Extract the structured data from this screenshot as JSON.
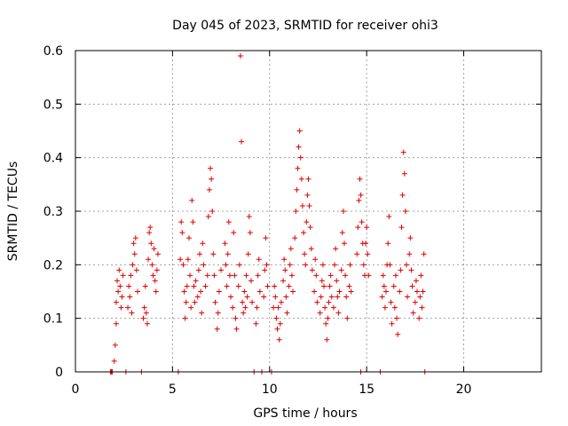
{
  "chart_data": {
    "type": "scatter",
    "title": "Day 045 of 2023, SRMTID for receiver ohi3",
    "xlabel": "GPS time / hours",
    "ylabel": "SRMTID / TECUs",
    "xlim": [
      0,
      24
    ],
    "ylim": [
      0,
      0.6
    ],
    "xticks": [
      0,
      5,
      10,
      15,
      20
    ],
    "yticks": [
      0,
      0.1,
      0.2,
      0.3,
      0.4,
      0.5,
      0.6
    ],
    "grid": true,
    "marker": "+",
    "series": [
      {
        "name": "SRMTID",
        "color": "#e00000",
        "points": [
          [
            1.8,
            0.0
          ],
          [
            1.85,
            0.0
          ],
          [
            1.9,
            0.0
          ],
          [
            2.0,
            0.02
          ],
          [
            2.05,
            0.05
          ],
          [
            2.1,
            0.09
          ],
          [
            2.1,
            0.13
          ],
          [
            2.15,
            0.17
          ],
          [
            2.2,
            0.15
          ],
          [
            2.25,
            0.19
          ],
          [
            2.3,
            0.16
          ],
          [
            2.35,
            0.12
          ],
          [
            2.4,
            0.14
          ],
          [
            2.45,
            0.18
          ],
          [
            2.6,
            0.0
          ],
          [
            2.7,
            0.12
          ],
          [
            2.75,
            0.16
          ],
          [
            2.8,
            0.14
          ],
          [
            2.85,
            0.18
          ],
          [
            2.9,
            0.11
          ],
          [
            2.95,
            0.2
          ],
          [
            3.0,
            0.24
          ],
          [
            3.05,
            0.22
          ],
          [
            3.1,
            0.25
          ],
          [
            3.15,
            0.19
          ],
          [
            3.2,
            0.15
          ],
          [
            3.4,
            0.0
          ],
          [
            3.5,
            0.1
          ],
          [
            3.55,
            0.12
          ],
          [
            3.6,
            0.16
          ],
          [
            3.65,
            0.11
          ],
          [
            3.7,
            0.09
          ],
          [
            3.75,
            0.21
          ],
          [
            3.8,
            0.26
          ],
          [
            3.85,
            0.27
          ],
          [
            3.9,
            0.24
          ],
          [
            3.95,
            0.2
          ],
          [
            4.0,
            0.18
          ],
          [
            4.05,
            0.23
          ],
          [
            4.1,
            0.17
          ],
          [
            4.15,
            0.15
          ],
          [
            4.2,
            0.19
          ],
          [
            4.25,
            0.22
          ],
          [
            5.3,
            0.0
          ],
          [
            5.4,
            0.21
          ],
          [
            5.45,
            0.28
          ],
          [
            5.5,
            0.26
          ],
          [
            5.55,
            0.2
          ],
          [
            5.6,
            0.15
          ],
          [
            5.65,
            0.1
          ],
          [
            5.7,
            0.13
          ],
          [
            5.75,
            0.16
          ],
          [
            5.8,
            0.21
          ],
          [
            5.85,
            0.25
          ],
          [
            5.9,
            0.18
          ],
          [
            5.95,
            0.12
          ],
          [
            6.0,
            0.32
          ],
          [
            6.05,
            0.28
          ],
          [
            6.1,
            0.16
          ],
          [
            6.15,
            0.13
          ],
          [
            6.2,
            0.17
          ],
          [
            6.3,
            0.14
          ],
          [
            6.35,
            0.19
          ],
          [
            6.4,
            0.22
          ],
          [
            6.45,
            0.15
          ],
          [
            6.5,
            0.11
          ],
          [
            6.55,
            0.24
          ],
          [
            6.6,
            0.2
          ],
          [
            6.7,
            0.16
          ],
          [
            6.8,
            0.18
          ],
          [
            6.85,
            0.29
          ],
          [
            6.9,
            0.34
          ],
          [
            6.95,
            0.38
          ],
          [
            7.0,
            0.36
          ],
          [
            7.05,
            0.3
          ],
          [
            7.1,
            0.22
          ],
          [
            7.15,
            0.18
          ],
          [
            7.2,
            0.13
          ],
          [
            7.3,
            0.08
          ],
          [
            7.35,
            0.11
          ],
          [
            7.4,
            0.15
          ],
          [
            7.5,
            0.19
          ],
          [
            7.7,
            0.24
          ],
          [
            7.75,
            0.2
          ],
          [
            7.8,
            0.16
          ],
          [
            7.85,
            0.22
          ],
          [
            7.9,
            0.28
          ],
          [
            7.95,
            0.18
          ],
          [
            8.0,
            0.14
          ],
          [
            8.1,
            0.12
          ],
          [
            8.15,
            0.26
          ],
          [
            8.2,
            0.18
          ],
          [
            8.25,
            0.1
          ],
          [
            8.3,
            0.08
          ],
          [
            8.4,
            0.16
          ],
          [
            8.45,
            0.2
          ],
          [
            8.5,
            0.59
          ],
          [
            8.55,
            0.43
          ],
          [
            8.6,
            0.13
          ],
          [
            8.65,
            0.11
          ],
          [
            8.7,
            0.15
          ],
          [
            8.75,
            0.12
          ],
          [
            8.8,
            0.18
          ],
          [
            8.85,
            0.14
          ],
          [
            8.9,
            0.22
          ],
          [
            8.95,
            0.29
          ],
          [
            9.0,
            0.26
          ],
          [
            9.05,
            0.17
          ],
          [
            9.1,
            0.13
          ],
          [
            9.2,
            0.0
          ],
          [
            9.3,
            0.09
          ],
          [
            9.35,
            0.12
          ],
          [
            9.4,
            0.18
          ],
          [
            9.45,
            0.21
          ],
          [
            9.5,
            0.15
          ],
          [
            9.6,
            0.0
          ],
          [
            9.7,
            0.14
          ],
          [
            9.75,
            0.19
          ],
          [
            9.8,
            0.25
          ],
          [
            9.85,
            0.2
          ],
          [
            9.9,
            0.16
          ],
          [
            10.1,
            0.0
          ],
          [
            10.2,
            0.12
          ],
          [
            10.25,
            0.16
          ],
          [
            10.3,
            0.14
          ],
          [
            10.35,
            0.1
          ],
          [
            10.4,
            0.08
          ],
          [
            10.45,
            0.12
          ],
          [
            10.5,
            0.06
          ],
          [
            10.55,
            0.09
          ],
          [
            10.6,
            0.13
          ],
          [
            10.7,
            0.17
          ],
          [
            10.75,
            0.21
          ],
          [
            10.8,
            0.19
          ],
          [
            10.85,
            0.14
          ],
          [
            10.9,
            0.11
          ],
          [
            11.0,
            0.16
          ],
          [
            11.05,
            0.2
          ],
          [
            11.1,
            0.23
          ],
          [
            11.15,
            0.18
          ],
          [
            11.2,
            0.15
          ],
          [
            11.3,
            0.25
          ],
          [
            11.35,
            0.3
          ],
          [
            11.4,
            0.34
          ],
          [
            11.45,
            0.38
          ],
          [
            11.5,
            0.42
          ],
          [
            11.55,
            0.45
          ],
          [
            11.6,
            0.4
          ],
          [
            11.65,
            0.36
          ],
          [
            11.7,
            0.31
          ],
          [
            11.75,
            0.26
          ],
          [
            11.8,
            0.22
          ],
          [
            11.85,
            0.2
          ],
          [
            11.9,
            0.28
          ],
          [
            11.95,
            0.33
          ],
          [
            12.0,
            0.36
          ],
          [
            12.05,
            0.31
          ],
          [
            12.1,
            0.27
          ],
          [
            12.15,
            0.23
          ],
          [
            12.2,
            0.19
          ],
          [
            12.3,
            0.15
          ],
          [
            12.35,
            0.21
          ],
          [
            12.4,
            0.18
          ],
          [
            12.45,
            0.13
          ],
          [
            12.6,
            0.11
          ],
          [
            12.65,
            0.14
          ],
          [
            12.7,
            0.17
          ],
          [
            12.75,
            0.2
          ],
          [
            12.8,
            0.16
          ],
          [
            12.85,
            0.12
          ],
          [
            12.9,
            0.09
          ],
          [
            12.95,
            0.06
          ],
          [
            13.0,
            0.1
          ],
          [
            13.05,
            0.13
          ],
          [
            13.1,
            0.16
          ],
          [
            13.15,
            0.18
          ],
          [
            13.2,
            0.14
          ],
          [
            13.3,
            0.12
          ],
          [
            13.35,
            0.2
          ],
          [
            13.4,
            0.23
          ],
          [
            13.45,
            0.17
          ],
          [
            13.5,
            0.14
          ],
          [
            13.55,
            0.11
          ],
          [
            13.6,
            0.15
          ],
          [
            13.7,
            0.19
          ],
          [
            13.75,
            0.26
          ],
          [
            13.8,
            0.3
          ],
          [
            13.85,
            0.24
          ],
          [
            13.9,
            0.18
          ],
          [
            13.95,
            0.14
          ],
          [
            14.0,
            0.1
          ],
          [
            14.1,
            0.16
          ],
          [
            14.15,
            0.2
          ],
          [
            14.2,
            0.15
          ],
          [
            14.5,
            0.22
          ],
          [
            14.55,
            0.27
          ],
          [
            14.6,
            0.32
          ],
          [
            14.65,
            0.36
          ],
          [
            14.7,
            0.33
          ],
          [
            14.75,
            0.28
          ],
          [
            14.8,
            0.24
          ],
          [
            14.85,
            0.2
          ],
          [
            14.9,
            0.18
          ],
          [
            14.95,
            0.24
          ],
          [
            15.0,
            0.27
          ],
          [
            15.05,
            0.22
          ],
          [
            15.1,
            0.18
          ],
          [
            14.7,
            0.0
          ],
          [
            15.7,
            0.0
          ],
          [
            15.8,
            0.14
          ],
          [
            15.85,
            0.18
          ],
          [
            15.9,
            0.16
          ],
          [
            15.95,
            0.12
          ],
          [
            16.0,
            0.15
          ],
          [
            16.05,
            0.2
          ],
          [
            16.1,
            0.24
          ],
          [
            16.15,
            0.29
          ],
          [
            16.2,
            0.2
          ],
          [
            16.25,
            0.13
          ],
          [
            16.3,
            0.09
          ],
          [
            16.4,
            0.16
          ],
          [
            16.45,
            0.12
          ],
          [
            16.5,
            0.18
          ],
          [
            16.55,
            0.1
          ],
          [
            16.6,
            0.07
          ],
          [
            16.7,
            0.15
          ],
          [
            16.75,
            0.19
          ],
          [
            16.8,
            0.27
          ],
          [
            16.85,
            0.33
          ],
          [
            16.9,
            0.41
          ],
          [
            16.95,
            0.37
          ],
          [
            17.0,
            0.3
          ],
          [
            17.05,
            0.2
          ],
          [
            17.1,
            0.14
          ],
          [
            17.2,
            0.22
          ],
          [
            17.25,
            0.25
          ],
          [
            17.3,
            0.19
          ],
          [
            17.35,
            0.16
          ],
          [
            17.4,
            0.11
          ],
          [
            17.5,
            0.13
          ],
          [
            17.55,
            0.17
          ],
          [
            17.6,
            0.15
          ],
          [
            17.7,
            0.1
          ],
          [
            17.75,
            0.14
          ],
          [
            17.8,
            0.18
          ],
          [
            17.85,
            0.12
          ],
          [
            17.9,
            0.15
          ],
          [
            17.95,
            0.22
          ],
          [
            18.0,
            0.0
          ]
        ]
      }
    ]
  }
}
